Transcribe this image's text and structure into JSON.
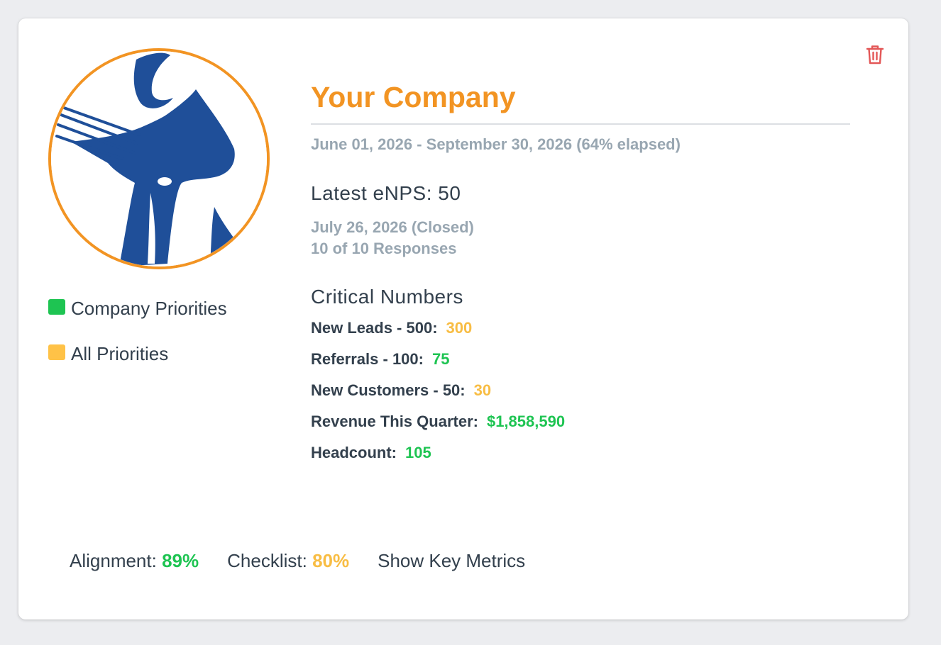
{
  "company": {
    "name": "Your Company",
    "date_range": "June 01, 2026 - September 30, 2026 (64% elapsed)"
  },
  "enps": {
    "heading": "Latest eNPS: 50",
    "survey_date": "July 26, 2026 (Closed)",
    "responses": "10 of 10 Responses"
  },
  "critical_numbers": {
    "heading": "Critical Numbers",
    "items": [
      {
        "label": "New Leads - 500:",
        "value": "300",
        "color": "#f8bd44"
      },
      {
        "label": "Referrals - 100:",
        "value": "75",
        "color": "#1ec452"
      },
      {
        "label": "New Customers - 50:",
        "value": "30",
        "color": "#f8bd44"
      },
      {
        "label": "Revenue This Quarter:",
        "value": "$1,858,590",
        "color": "#1ec452"
      },
      {
        "label": "Headcount:",
        "value": "105",
        "color": "#1ec452"
      }
    ]
  },
  "legend": [
    {
      "label": "Company Priorities",
      "color": "#1ec452"
    },
    {
      "label": "All Priorities",
      "color": "#ffc247"
    }
  ],
  "footer": {
    "alignment_label": "Alignment:",
    "alignment_value": "89%",
    "alignment_color": "#1ec452",
    "checklist_label": "Checklist:",
    "checklist_value": "80%",
    "checklist_color": "#f8bd44",
    "metrics_link": "Show Key Metrics"
  },
  "colors": {
    "accent": "#f29423",
    "delete": "#e35757",
    "logo_blue": "#1f4f99"
  },
  "icons": {
    "delete": "trash-icon"
  }
}
